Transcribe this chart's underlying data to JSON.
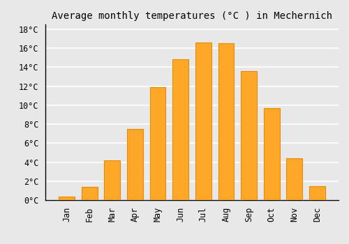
{
  "title": "Average monthly temperatures (°C ) in Mechernich",
  "months": [
    "Jan",
    "Feb",
    "Mar",
    "Apr",
    "May",
    "Jun",
    "Jul",
    "Aug",
    "Sep",
    "Oct",
    "Nov",
    "Dec"
  ],
  "values": [
    0.4,
    1.4,
    4.2,
    7.5,
    11.9,
    14.8,
    16.6,
    16.5,
    13.6,
    9.7,
    4.4,
    1.5
  ],
  "bar_color": "#FFA726",
  "bar_edge_color": "#E8890C",
  "ylim": [
    0,
    18.5
  ],
  "yticks": [
    0,
    2,
    4,
    6,
    8,
    10,
    12,
    14,
    16,
    18
  ],
  "ytick_labels": [
    "0°C",
    "2°C",
    "4°C",
    "6°C",
    "8°C",
    "10°C",
    "12°C",
    "14°C",
    "16°C",
    "18°C"
  ],
  "background_color": "#e8e8e8",
  "grid_color": "#ffffff",
  "title_fontsize": 10,
  "tick_fontsize": 8.5,
  "bar_width": 0.7
}
